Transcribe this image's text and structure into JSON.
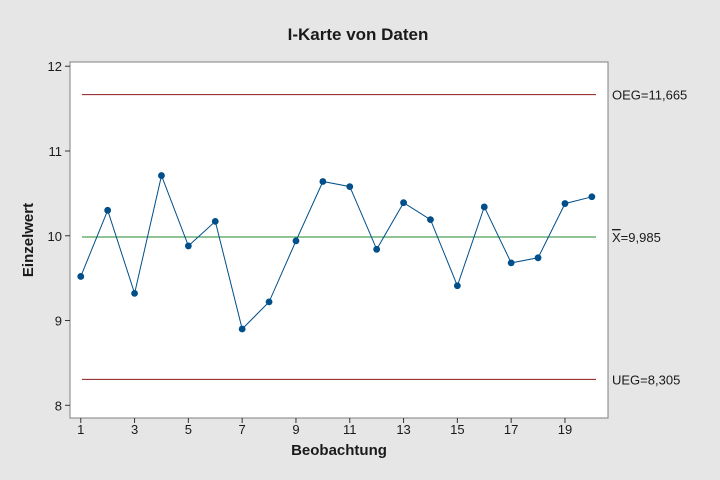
{
  "chart_data": {
    "type": "line",
    "title": "I-Karte von Daten",
    "xlabel": "Beobachtung",
    "ylabel": "Einzelwert",
    "xlim": [
      0.6,
      20.6
    ],
    "ylim": [
      7.85,
      12.05
    ],
    "x_ticks": [
      1,
      3,
      5,
      7,
      9,
      11,
      13,
      15,
      17,
      19
    ],
    "y_ticks": [
      8,
      9,
      10,
      11,
      12
    ],
    "grid": false,
    "legend": "none",
    "series": [
      {
        "x": [
          1,
          2,
          3,
          4,
          5,
          6,
          7,
          8,
          9,
          10,
          11,
          12,
          13,
          14,
          15,
          16,
          17,
          18,
          19,
          20
        ],
        "values": [
          9.52,
          10.3,
          9.32,
          10.71,
          9.88,
          10.17,
          8.9,
          9.22,
          9.94,
          10.64,
          10.58,
          9.84,
          10.39,
          10.19,
          9.41,
          10.34,
          9.68,
          9.74,
          10.38,
          10.46
        ],
        "color": "#004f8a"
      }
    ],
    "reference_lines": [
      {
        "id": "ucl",
        "label": "OEG=11,665",
        "value": 11.665,
        "color": "#8b1a1a"
      },
      {
        "id": "center",
        "label_symbol": "X",
        "label": "=9,985",
        "value": 9.985,
        "color": "#1f8a2e"
      },
      {
        "id": "lcl",
        "label": "UEG=8,305",
        "value": 8.305,
        "color": "#8b1a1a"
      }
    ]
  }
}
